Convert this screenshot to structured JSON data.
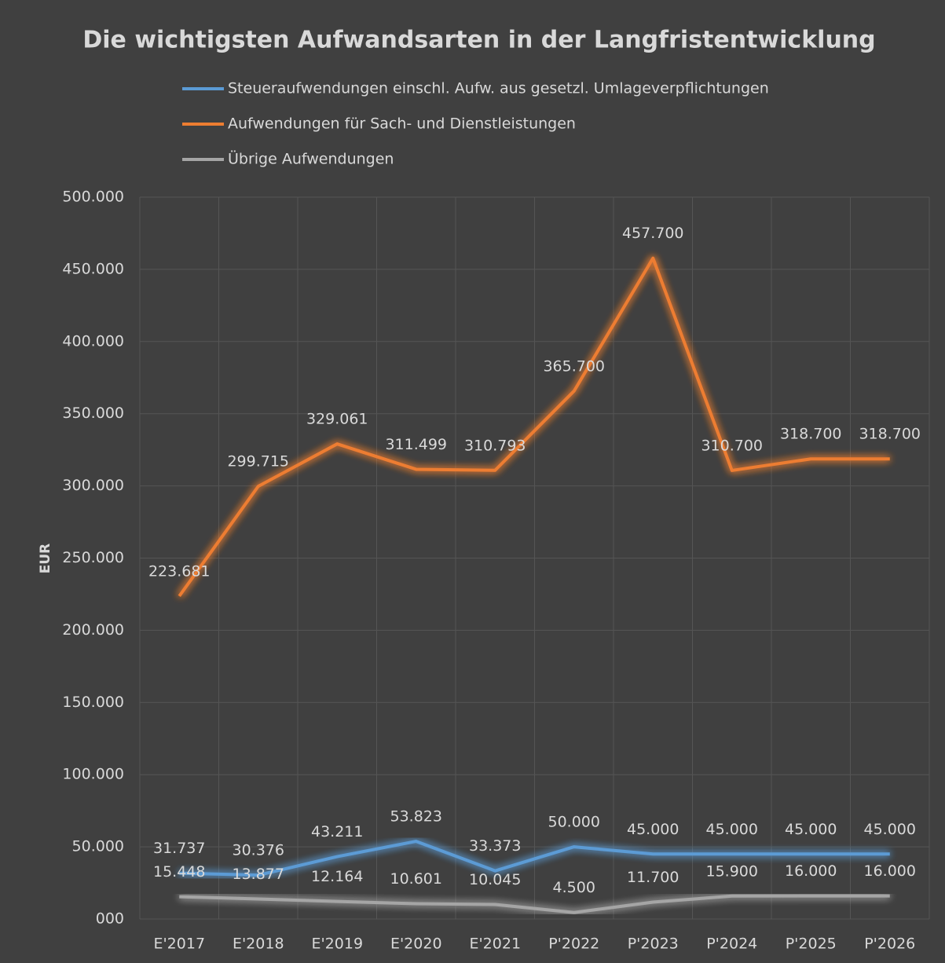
{
  "chart_data": {
    "type": "line",
    "title": "Die wichtigsten Aufwandsarten in der Langfristentwicklung",
    "y_label": "EUR",
    "categories": [
      "E'2017",
      "E'2018",
      "E'2019",
      "E'2020",
      "E'2021",
      "P'2022",
      "P'2023",
      "P'2024",
      "P'2025",
      "P'2026"
    ],
    "series": [
      {
        "name": "Steueraufwendungen einschl. Aufw. aus gesetzl. Umlageverpflichtungen",
        "color": "#5b9bd5",
        "values": [
          31737,
          30376,
          43211,
          53823,
          33373,
          50000,
          45000,
          45000,
          45000,
          45000
        ],
        "value_labels": [
          "31.737",
          "30.376",
          "43.211",
          "53.823",
          "33.373",
          "50.000",
          "45.000",
          "45.000",
          "45.000",
          "45.000"
        ]
      },
      {
        "name": "Aufwendungen für Sach- und Dienstleistungen",
        "color": "#ed7d31",
        "values": [
          223681,
          299715,
          329061,
          311499,
          310793,
          365700,
          457700,
          310700,
          318700,
          318700
        ],
        "value_labels": [
          "223.681",
          "299.715",
          "329.061",
          "311.499",
          "310.793",
          "365.700",
          "457.700",
          "310.700",
          "318.700",
          "318.700"
        ]
      },
      {
        "name": "Übrige Aufwendungen",
        "color": "#a5a5a5",
        "values": [
          15448,
          13877,
          12164,
          10601,
          10045,
          4500,
          11700,
          15900,
          16000,
          16000
        ],
        "value_labels": [
          "15.448",
          "13.877",
          "12.164",
          "10.601",
          "10.045",
          "4.500",
          "11.700",
          "15.900",
          "16.000",
          "16.000"
        ]
      }
    ],
    "ylim": [
      0,
      500000
    ],
    "yticks": [
      {
        "value": 0,
        "label": "000"
      },
      {
        "value": 50000,
        "label": "50.000"
      },
      {
        "value": 100000,
        "label": "100.000"
      },
      {
        "value": 150000,
        "label": "150.000"
      },
      {
        "value": 200000,
        "label": "200.000"
      },
      {
        "value": 250000,
        "label": "250.000"
      },
      {
        "value": 300000,
        "label": "300.000"
      },
      {
        "value": 350000,
        "label": "350.000"
      },
      {
        "value": 400000,
        "label": "400.000"
      },
      {
        "value": 450000,
        "label": "450.000"
      },
      {
        "value": 500000,
        "label": "500.000"
      }
    ],
    "grid": true,
    "legend": "top"
  }
}
